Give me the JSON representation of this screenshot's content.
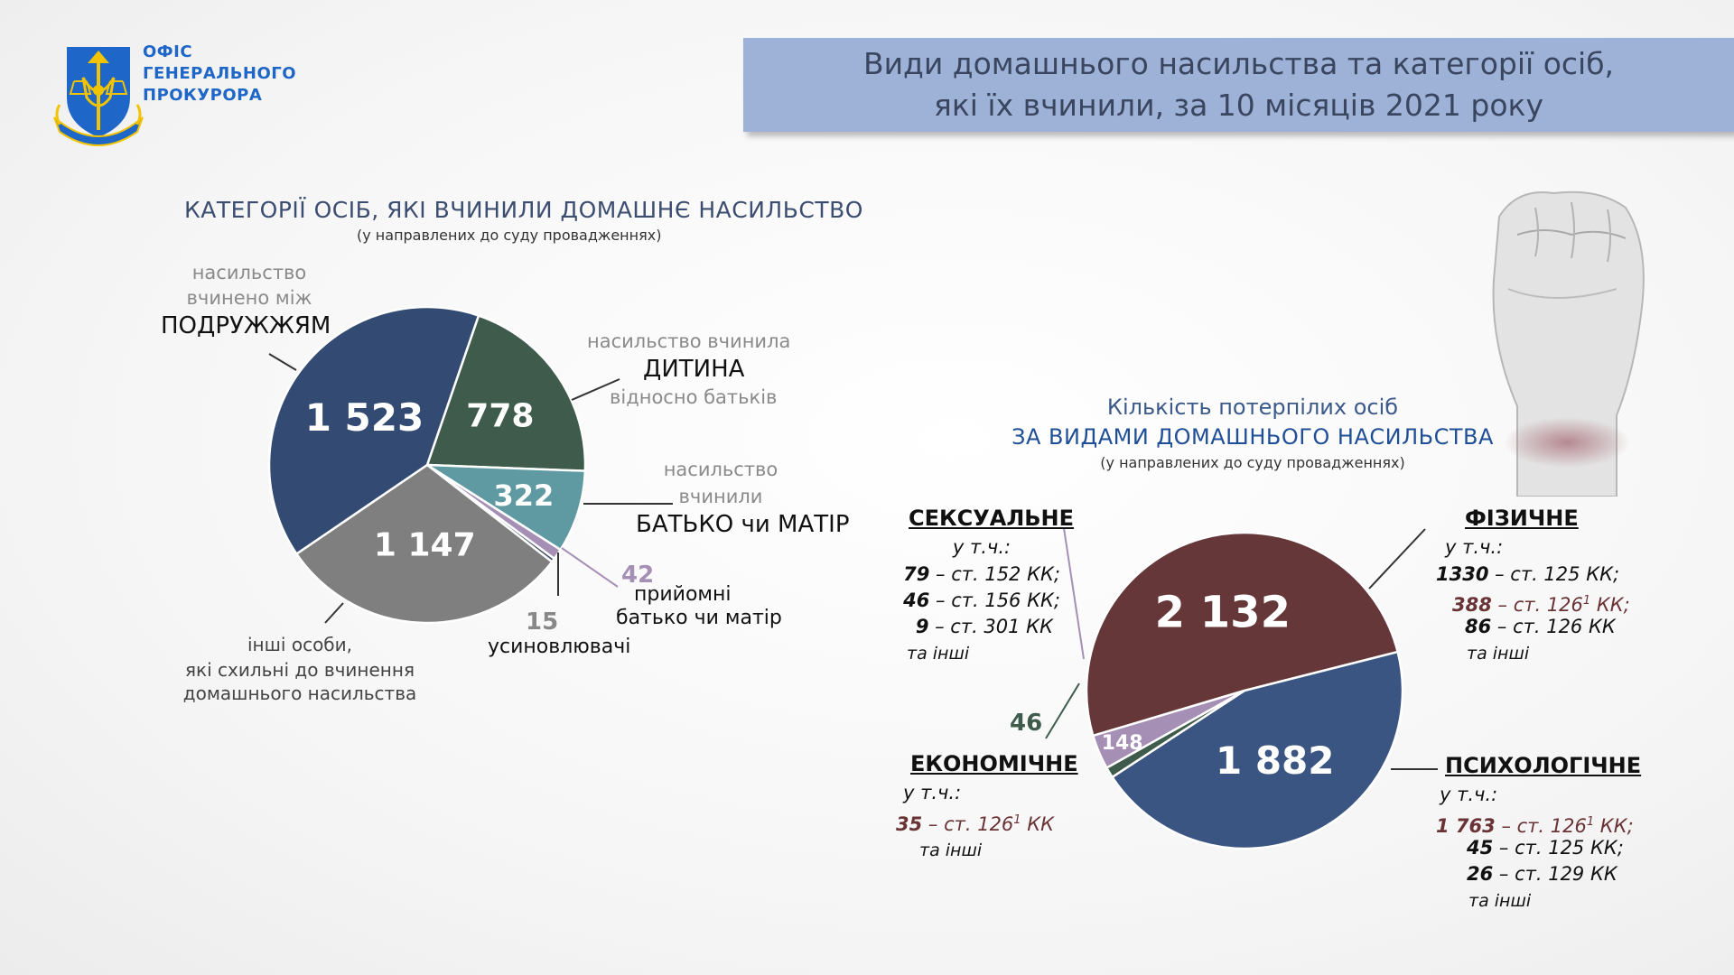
{
  "header": {
    "org_line1": "ОФІС",
    "org_line2": "ГЕНЕРАЛЬНОГО",
    "org_line3": "ПРОКУРОРА",
    "title_line1": "Види домашнього насильства та категорії осіб,",
    "title_line2": "які їх вчинили, за 10 місяців 2021 року"
  },
  "left_heading": {
    "title": "КАТЕГОРІЇ ОСІБ, ЯКІ ВЧИНИЛИ ДОМАШНЄ НАСИЛЬСТВО",
    "subtitle": "(у направлених до суду провадженнях)"
  },
  "left_labels": {
    "spouses_l1": "насильство",
    "spouses_l2": "вчинено між",
    "spouses_big": "ПОДРУЖЖЯМ",
    "child_l1": "насильство вчинила",
    "child_big": "ДИТИНА",
    "child_l2": "відносно батьків",
    "parent_l1": "насильство",
    "parent_l2": "вчинили",
    "parent_big": "БАТЬКО чи МАТІР",
    "foster_val": "42",
    "foster_l1": "прийомні",
    "foster_l2": "батько чи матір",
    "adopt_val": "15",
    "adopt_l1": "усиновлювачі",
    "others_l1": "інші особи,",
    "others_l2": "які схильні до вчинення",
    "others_l3": "домашнього насильства"
  },
  "right_heading": {
    "line1": "Кількість потерпілих осіб",
    "line2": "ЗА ВИДАМИ ДОМАШНЬОГО НАСИЛЬСТВА",
    "subtitle": "(у направлених до суду провадженнях)"
  },
  "right_labels": {
    "sexual_title": "СЕКСУАЛЬНЕ",
    "sexual_incl": "у т.ч.:",
    "sexual_n1": "79",
    "sexual_t1": " – ст. 152 КК;",
    "sexual_n2": "46",
    "sexual_t2": " – ст. 156 КК;",
    "sexual_n3": "9",
    "sexual_t3": " – ст. 301 КК",
    "sexual_other": "та інші",
    "physical_title": "ФІЗИЧНЕ",
    "physical_incl": "у т.ч.:",
    "physical_n1": "1330",
    "physical_t1": " – ст. 125 КК;",
    "physical_n2": "388",
    "physical_t2": " – ст. 126",
    "physical_s2": "1",
    "physical_e2": " КК;",
    "physical_n3": "86",
    "physical_t3": " – ст. 126 КК",
    "physical_other": "та інші",
    "econ_val": "46",
    "econ_title": "ЕКОНОМІЧНЕ",
    "econ_incl": "у т.ч.:",
    "econ_n1": "35",
    "econ_t1": " – ст. 126",
    "econ_s1": "1",
    "econ_e1": " КК",
    "econ_other": "та інші",
    "psych_title": "ПСИХОЛОГІЧНЕ",
    "psych_incl": "у т.ч.:",
    "psych_n1": "1 763",
    "psych_t1": " – ст. 126",
    "psych_s1": "1",
    "psych_e1": " КК;",
    "psych_n2": "45",
    "psych_t2": " – ст. 125 КК;",
    "psych_n3": "26",
    "psych_t3": " – ст. 129 КК",
    "psych_other": "та інші"
  },
  "chart_data": [
    {
      "type": "pie",
      "title": "КАТЕГОРІЇ ОСІБ, ЯКІ ВЧИНИЛИ ДОМАШНЄ НАСИЛЬСТВО",
      "subtitle": "(у направлених до суду провадженнях)",
      "slices": [
        {
          "label": "ДИТИНА",
          "value": 778,
          "display": "778",
          "color": "#3e5b4b"
        },
        {
          "label": "БАТЬКО чи МАТІР",
          "value": 322,
          "display": "322",
          "color": "#5f9aa3"
        },
        {
          "label": "прийомні батько чи матір",
          "value": 42,
          "display": "",
          "color": "#a58fb5"
        },
        {
          "label": "усиновлювачі",
          "value": 15,
          "display": "",
          "color": "#3f4f68"
        },
        {
          "label": "інші особи",
          "value": 1147,
          "display": "1 147",
          "color": "#7f7f7f"
        },
        {
          "label": "ПОДРУЖЖЯМ",
          "value": 1523,
          "display": "1 523",
          "color": "#334b73"
        }
      ]
    },
    {
      "type": "pie",
      "title": "Кількість потерпілих осіб ЗА ВИДАМИ ДОМАШНЬОГО НАСИЛЬСТВА",
      "subtitle": "(у направлених до суду провадженнях)",
      "slices": [
        {
          "label": "ФІЗИЧНЕ",
          "value": 2132,
          "display": "2 132",
          "color": "#663739"
        },
        {
          "label": "ПСИХОЛОГІЧНЕ",
          "value": 1882,
          "display": "1 882",
          "color": "#3b5583"
        },
        {
          "label": "ЕКОНОМІЧНЕ",
          "value": 46,
          "display": "",
          "color": "#3e5b4b"
        },
        {
          "label": "СЕКСУАЛЬНЕ",
          "value": 148,
          "display": "148",
          "color": "#a58fb5"
        }
      ]
    }
  ]
}
